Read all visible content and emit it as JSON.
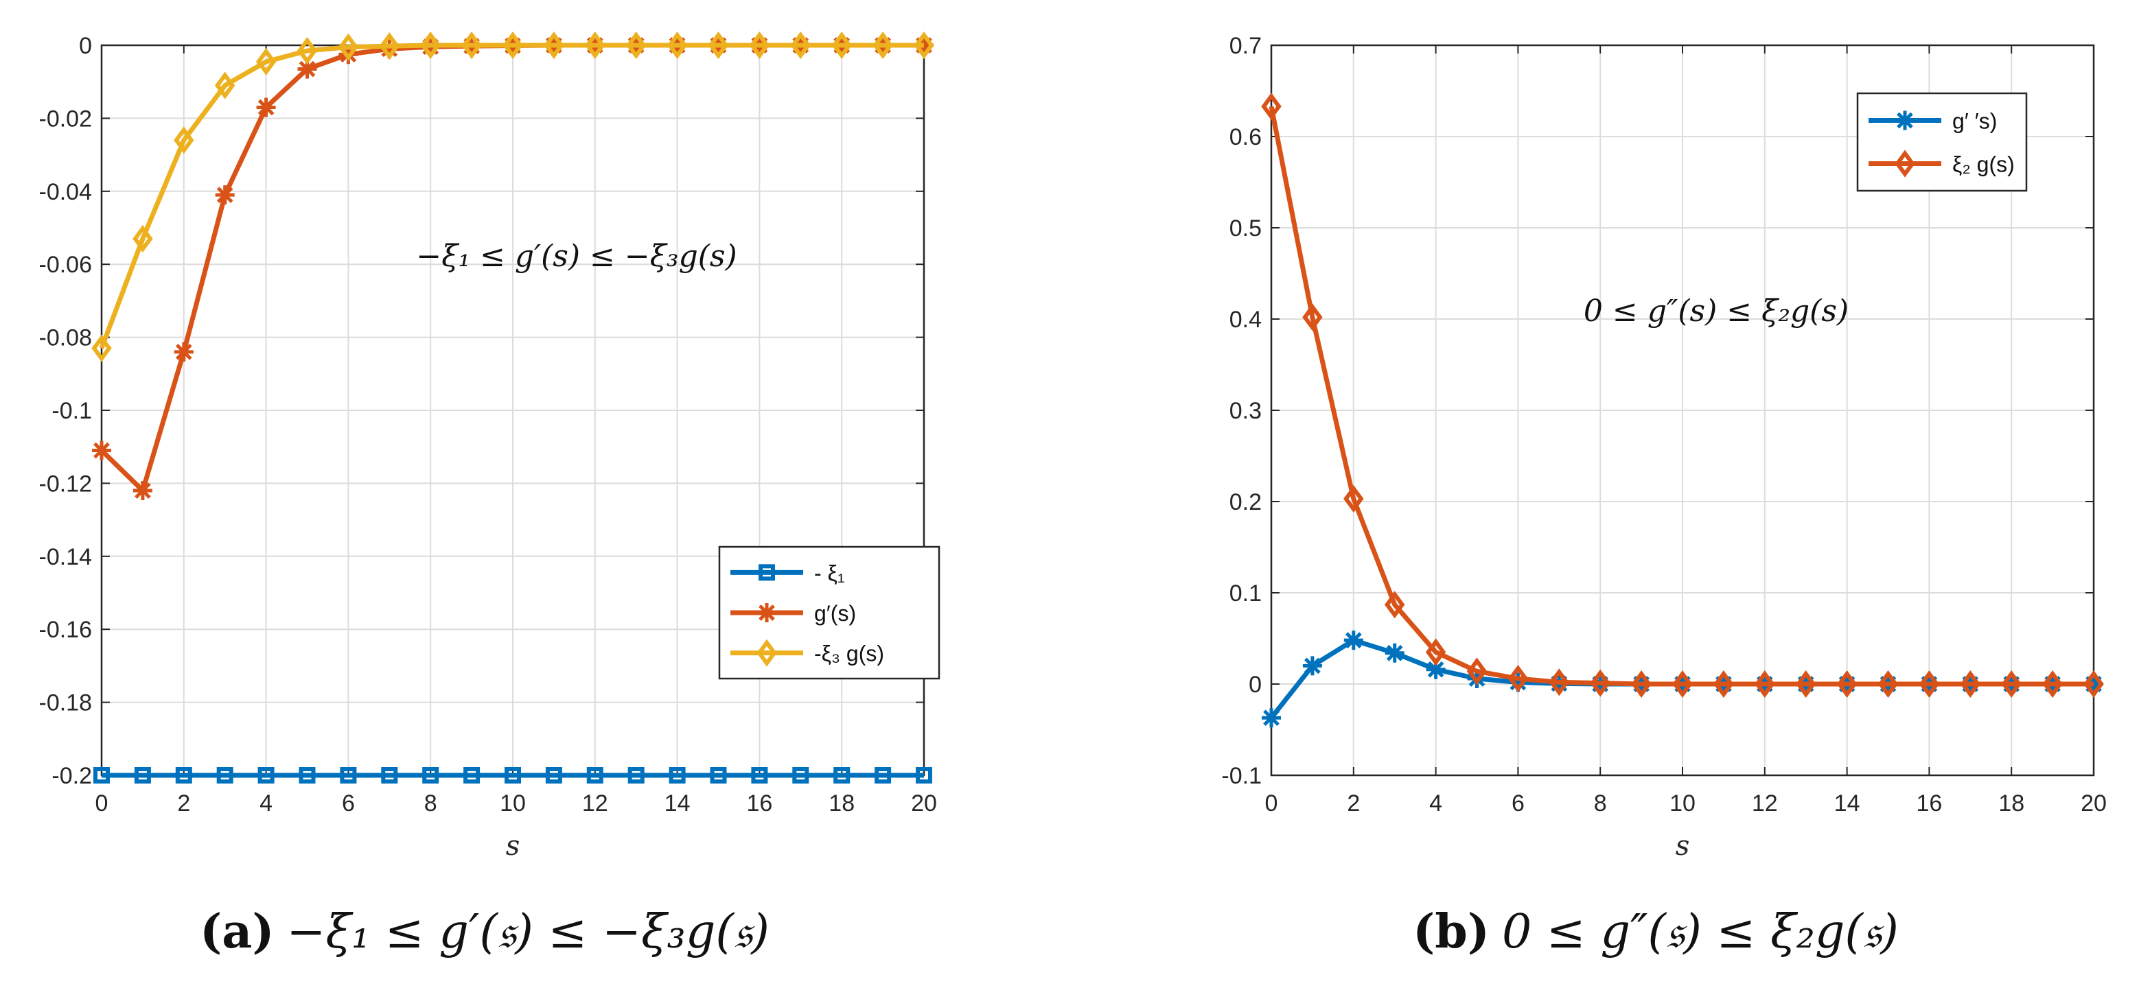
{
  "figure": {
    "panels": [
      {
        "caption_label": "(a)",
        "caption_text": "−ξ₁ ≤ g′(𝔰) ≤ −ξ₃g(𝔰)"
      },
      {
        "caption_label": "(b)",
        "caption_text": "0 ≤ g″(𝔰) ≤ ξ₂g(𝔰)"
      }
    ]
  },
  "chart_data": [
    {
      "type": "line",
      "title": "",
      "xlabel": "s",
      "ylabel": "",
      "xlim": [
        0,
        20
      ],
      "ylim": [
        -0.2,
        0
      ],
      "xticks": [
        0,
        2,
        4,
        6,
        8,
        10,
        12,
        14,
        16,
        18,
        20
      ],
      "yticks": [
        0,
        -0.02,
        -0.04,
        -0.06,
        -0.08,
        -0.1,
        -0.12,
        -0.14,
        -0.16,
        -0.18,
        -0.2
      ],
      "ytick_labels": [
        "0",
        "-0.02",
        "-0.04",
        "-0.06",
        "-0.08",
        "-0.1",
        "-0.12",
        "-0.14",
        "-0.16",
        "-0.18",
        "-0.2"
      ],
      "grid": true,
      "legend_position": "lower-right",
      "annotation": "−ξ₁ ≤ g′(s) ≤ −ξ₃g(s)",
      "x": [
        0,
        1,
        2,
        3,
        4,
        5,
        6,
        7,
        8,
        9,
        10,
        11,
        12,
        13,
        14,
        15,
        16,
        17,
        18,
        19,
        20
      ],
      "series": [
        {
          "name": "- ξ₁",
          "color": "#0072BD",
          "marker": "square",
          "values": [
            -0.2,
            -0.2,
            -0.2,
            -0.2,
            -0.2,
            -0.2,
            -0.2,
            -0.2,
            -0.2,
            -0.2,
            -0.2,
            -0.2,
            -0.2,
            -0.2,
            -0.2,
            -0.2,
            -0.2,
            -0.2,
            -0.2,
            -0.2,
            -0.2
          ]
        },
        {
          "name": "g′(s)",
          "color": "#D95319",
          "marker": "asterisk",
          "values": [
            -0.111,
            -0.122,
            -0.084,
            -0.041,
            -0.017,
            -0.0065,
            -0.0025,
            -0.001,
            -0.0004,
            -0.0002,
            -0.0001,
            0,
            0,
            0,
            0,
            0,
            0,
            0,
            0,
            0,
            0
          ]
        },
        {
          "name": "-ξ₃ g(s)",
          "color": "#EDB120",
          "marker": "diamond",
          "values": [
            -0.083,
            -0.053,
            -0.026,
            -0.011,
            -0.0045,
            -0.0015,
            -0.0005,
            -0.0002,
            0,
            0,
            0,
            0,
            0,
            0,
            0,
            0,
            0,
            0,
            0,
            0,
            0
          ]
        }
      ]
    },
    {
      "type": "line",
      "title": "",
      "xlabel": "s",
      "ylabel": "",
      "xlim": [
        0,
        20
      ],
      "ylim": [
        -0.1,
        0.7
      ],
      "xticks": [
        0,
        2,
        4,
        6,
        8,
        10,
        12,
        14,
        16,
        18,
        20
      ],
      "yticks": [
        0.7,
        0.6,
        0.5,
        0.4,
        0.3,
        0.2,
        0.1,
        0,
        -0.1
      ],
      "ytick_labels": [
        "0.7",
        "0.6",
        "0.5",
        "0.4",
        "0.3",
        "0.2",
        "0.1",
        "0",
        "-0.1"
      ],
      "grid": true,
      "legend_position": "top-right",
      "annotation": "0 ≤ g″(s) ≤ ξ₂g(s)",
      "x": [
        0,
        1,
        2,
        3,
        4,
        5,
        6,
        7,
        8,
        9,
        10,
        11,
        12,
        13,
        14,
        15,
        16,
        17,
        18,
        19,
        20
      ],
      "series": [
        {
          "name": "g′ ′s)",
          "color": "#0072BD",
          "marker": "asterisk",
          "values": [
            -0.037,
            0.02,
            0.048,
            0.034,
            0.016,
            0.006,
            0.002,
            0.0005,
            0,
            0,
            0,
            0,
            0,
            0,
            0,
            0,
            0,
            0,
            0,
            0,
            0
          ]
        },
        {
          "name": "ξ₂ g(s)",
          "color": "#D95319",
          "marker": "diamond",
          "values": [
            0.633,
            0.402,
            0.203,
            0.087,
            0.035,
            0.014,
            0.006,
            0.002,
            0.001,
            0,
            0,
            0,
            0,
            0,
            0,
            0,
            0,
            0,
            0,
            0,
            0
          ]
        }
      ]
    }
  ]
}
